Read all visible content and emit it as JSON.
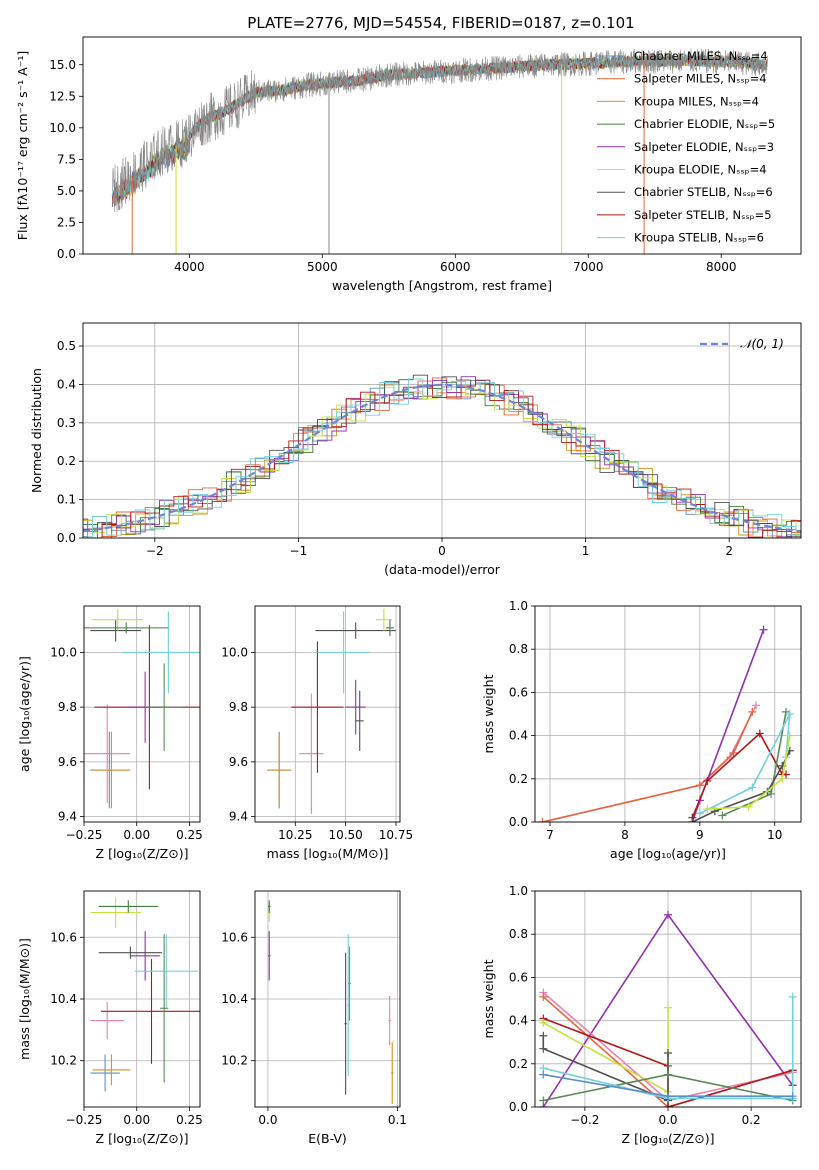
{
  "figure": {
    "title": "PLATE=2776, MJD=54554, FIBERID=0187, z=0.101"
  },
  "colors": {
    "Chabrier MILES": "#5b8fc9",
    "Salpeter MILES": "#e8643c",
    "Kroupa MILES": "#d89020",
    "Chabrier ELODIE": "#3f7f3f",
    "Salpeter ELODIE": "#9030b0",
    "Kroupa ELODIE": "#c8e040",
    "Chabrier STELIB": "#505050",
    "Salpeter STELIB": "#b01818",
    "Kroupa STELIB": "#70d0dc",
    "data": "#888888",
    "gauss": "#6f86d6",
    "pink": "#e880b0",
    "green2": "#5a8a5a"
  },
  "chart_data": [
    {
      "id": "spectrum",
      "type": "line",
      "xlabel": "wavelength [Angstrom, rest frame]",
      "ylabel": "Flux [fλ10⁻¹⁷ erg cm⁻² s⁻¹ A⁻¹]",
      "xlim": [
        3200,
        8600
      ],
      "ylim": [
        0,
        17.2
      ],
      "xticks": [
        "4000",
        "5000",
        "6000",
        "7000",
        "8000"
      ],
      "yticks": [
        "0.0",
        "2.5",
        "5.0",
        "7.5",
        "10.0",
        "12.5",
        "15.0"
      ],
      "legend_position": "upper right",
      "legend": [
        {
          "name": "Chabrier MILES, Nₛₛₚ=4",
          "color": "#5b8fc9"
        },
        {
          "name": "Salpeter MILES, Nₛₛₚ=4",
          "color": "#e8643c"
        },
        {
          "name": "Kroupa MILES, Nₛₛₚ=4",
          "color": "#d89020"
        },
        {
          "name": "Chabrier ELODIE, Nₛₛₚ=5",
          "color": "#3f7f3f"
        },
        {
          "name": "Salpeter ELODIE, Nₛₛₚ=3",
          "color": "#9030b0"
        },
        {
          "name": "Kroupa ELODIE, Nₛₛₚ=4",
          "color": "#c8e040"
        },
        {
          "name": "Chabrier STELIB, Nₛₛₚ=6",
          "color": "#505050"
        },
        {
          "name": "Salpeter STELIB, Nₛₛₚ=5",
          "color": "#b01818"
        },
        {
          "name": "Kroupa STELIB, Nₛₛₚ=6",
          "color": "#70d0dc"
        }
      ],
      "continuum": [
        [
          3420,
          5.0
        ],
        [
          3600,
          6.5
        ],
        [
          3800,
          8.2
        ],
        [
          3950,
          8.8
        ],
        [
          4100,
          10.5
        ],
        [
          4300,
          11.5
        ],
        [
          4500,
          12.8
        ],
        [
          4700,
          13.0
        ],
        [
          4900,
          13.4
        ],
        [
          5100,
          13.6
        ],
        [
          5300,
          13.8
        ],
        [
          5500,
          14.2
        ],
        [
          5800,
          14.4
        ],
        [
          6100,
          14.6
        ],
        [
          6400,
          14.8
        ],
        [
          6700,
          15.0
        ],
        [
          7000,
          15.1
        ],
        [
          7400,
          15.3
        ],
        [
          7800,
          15.3
        ],
        [
          8100,
          15.2
        ],
        [
          8350,
          15.0
        ]
      ],
      "vertical_drops": [
        3570,
        3900,
        5050,
        6800,
        7420
      ]
    },
    {
      "id": "residuals",
      "type": "step",
      "xlabel": "(data-model)/error",
      "ylabel": "Normed distribution",
      "xlim": [
        -2.5,
        2.5
      ],
      "ylim": [
        0,
        0.56
      ],
      "xticks": [
        "−2",
        "−1",
        "0",
        "1",
        "2"
      ],
      "yticks": [
        "0.0",
        "0.1",
        "0.2",
        "0.3",
        "0.4",
        "0.5"
      ],
      "legend": [
        {
          "name": "𝒩(0, 1)",
          "color": "#6f86d6",
          "style": "dashed"
        }
      ],
      "bin_width": 0.1,
      "x_start": -2.5
    },
    {
      "id": "age_vs_Z",
      "type": "errorbar",
      "xlabel": "Z [log₁₀(Z/Z⊙)]",
      "ylabel": "age  [log₁₀(age/yr)]",
      "xlim": [
        -0.25,
        0.3
      ],
      "ylim": [
        9.38,
        10.17
      ],
      "xticks": [
        "−0.25",
        "0.00",
        "0.25"
      ],
      "yticks": [
        "9.4",
        "9.6",
        "9.8",
        "10.0"
      ],
      "points": [
        {
          "x": -0.13,
          "y": 9.57,
          "xerr": 0.09,
          "yerr": 0.14,
          "color": "#5b8fc9"
        },
        {
          "x": -0.12,
          "y": 9.57,
          "xerr": 0.09,
          "yerr": 0.14,
          "color": "#d89020"
        },
        {
          "x": -0.14,
          "y": 9.63,
          "xerr": 0.11,
          "yerr": 0.18,
          "color": "#e880b0"
        },
        {
          "x": 0.06,
          "y": 9.8,
          "xerr": 0.26,
          "yerr": 0.3,
          "color": "#b01818"
        },
        {
          "x": 0.04,
          "y": 9.8,
          "xerr": 0.08,
          "yerr": 0.13,
          "color": "#9030b0"
        },
        {
          "x": 0.13,
          "y": 9.8,
          "xerr": 0.09,
          "yerr": 0.16,
          "color": "#5a8a5a"
        },
        {
          "x": 0.15,
          "y": 10.0,
          "xerr": 0.22,
          "yerr": 0.15,
          "color": "#70d0dc"
        },
        {
          "x": -0.1,
          "y": 10.08,
          "xerr": 0.12,
          "yerr": 0.04,
          "color": "#505050"
        },
        {
          "x": -0.09,
          "y": 10.12,
          "xerr": 0.12,
          "yerr": 0.04,
          "color": "#c8e040"
        },
        {
          "x": -0.05,
          "y": 10.09,
          "xerr": 0.2,
          "yerr": 0.02,
          "color": "#3f7f3f"
        }
      ]
    },
    {
      "id": "age_vs_mass",
      "type": "errorbar",
      "xlabel": "mass [log₁₀(M/M⊙)]",
      "ylabel": "",
      "xlim": [
        10.05,
        10.77
      ],
      "ylim": [
        9.38,
        10.17
      ],
      "xticks": [
        "10.25",
        "10.50",
        "10.75"
      ],
      "yticks": [
        "9.4",
        "9.6",
        "9.8",
        "10.0"
      ],
      "points": [
        {
          "x": 10.17,
          "y": 9.57,
          "xerr": 0.06,
          "yerr": 0.14,
          "color": "#5b8fc9"
        },
        {
          "x": 10.17,
          "y": 9.57,
          "xerr": 0.06,
          "yerr": 0.13,
          "color": "#d89020"
        },
        {
          "x": 10.33,
          "y": 9.63,
          "xerr": 0.06,
          "yerr": 0.22,
          "color": "#e880b0"
        },
        {
          "x": 10.36,
          "y": 9.8,
          "xerr": 0.13,
          "yerr": 0.24,
          "color": "#b01818"
        },
        {
          "x": 10.55,
          "y": 9.8,
          "xerr": 0.05,
          "yerr": 0.1,
          "color": "#9030b0"
        },
        {
          "x": 10.57,
          "y": 9.75,
          "xerr": 0.02,
          "yerr": 0.11,
          "color": "#505050"
        },
        {
          "x": 10.49,
          "y": 10.0,
          "xerr": 0.13,
          "yerr": 0.15,
          "color": "#70d0dc"
        },
        {
          "x": 10.55,
          "y": 10.08,
          "xerr": 0.2,
          "yerr": 0.03,
          "color": "#505050"
        },
        {
          "x": 10.69,
          "y": 10.12,
          "xerr": 0.04,
          "yerr": 0.04,
          "color": "#c8e040"
        },
        {
          "x": 10.72,
          "y": 10.09,
          "xerr": 0.02,
          "yerr": 0.03,
          "color": "#3f7f3f"
        }
      ]
    },
    {
      "id": "weight_vs_age",
      "type": "line",
      "xlabel": "age  [log₁₀(age/yr)]",
      "ylabel": "mass weight",
      "xlim": [
        6.8,
        10.35
      ],
      "ylim": [
        0,
        1.0
      ],
      "xticks": [
        "7",
        "8",
        "9",
        "10"
      ],
      "yticks": [
        "0.0",
        "0.2",
        "0.4",
        "0.6",
        "0.8",
        "1.0"
      ],
      "grid": true,
      "series": [
        {
          "color": "#e880b0",
          "x": [
            6.9,
            9.0,
            9.4,
            9.75
          ],
          "y": [
            0.0,
            0.17,
            0.3,
            0.54
          ]
        },
        {
          "color": "#e8643c",
          "x": [
            6.9,
            9.0,
            9.45,
            9.7
          ],
          "y": [
            0.0,
            0.17,
            0.32,
            0.51
          ]
        },
        {
          "color": "#9030b0",
          "x": [
            8.9,
            9.0,
            9.85
          ],
          "y": [
            0.0,
            0.1,
            0.89
          ]
        },
        {
          "color": "#b01818",
          "x": [
            8.9,
            9.1,
            9.8,
            10.1,
            10.15
          ],
          "y": [
            0.02,
            0.19,
            0.41,
            0.22,
            0.22
          ]
        },
        {
          "color": "#5a8a5a",
          "x": [
            9.3,
            9.95,
            10.15
          ],
          "y": [
            0.03,
            0.13,
            0.51
          ]
        },
        {
          "color": "#505050",
          "x": [
            8.9,
            9.2,
            9.9,
            10.1,
            10.2
          ],
          "y": [
            0.0,
            0.05,
            0.14,
            0.26,
            0.33
          ]
        },
        {
          "color": "#70d0dc",
          "x": [
            9.0,
            9.7,
            10.2,
            10.15
          ],
          "y": [
            0.04,
            0.16,
            0.5,
            0.3
          ]
        },
        {
          "color": "#c8e040",
          "x": [
            9.1,
            9.65,
            10.1,
            10.2
          ],
          "y": [
            0.06,
            0.07,
            0.2,
            0.4
          ]
        }
      ]
    },
    {
      "id": "mass_vs_Z",
      "type": "errorbar",
      "xlabel": "Z [log₁₀(Z/Z⊙)]",
      "ylabel": "mass [log₁₀(M/M⊙)]",
      "xlim": [
        -0.25,
        0.3
      ],
      "ylim": [
        10.05,
        10.75
      ],
      "xticks": [
        "−0.25",
        "0.00",
        "0.25"
      ],
      "yticks": [
        "10.2",
        "10.4",
        "10.6"
      ],
      "points": [
        {
          "x": -0.15,
          "y": 10.16,
          "xerr": 0.07,
          "yerr": 0.06,
          "color": "#5b8fc9"
        },
        {
          "x": -0.12,
          "y": 10.17,
          "xerr": 0.09,
          "yerr": 0.05,
          "color": "#d89020"
        },
        {
          "x": -0.14,
          "y": 10.33,
          "xerr": 0.08,
          "yerr": 0.06,
          "color": "#e880b0"
        },
        {
          "x": 0.07,
          "y": 10.36,
          "xerr": 0.24,
          "yerr": 0.17,
          "color": "#b01818"
        },
        {
          "x": 0.04,
          "y": 10.54,
          "xerr": 0.07,
          "yerr": 0.08,
          "color": "#9030b0"
        },
        {
          "x": 0.13,
          "y": 10.37,
          "xerr": 0.02,
          "yerr": 0.24,
          "color": "#5a8a5a"
        },
        {
          "x": 0.14,
          "y": 10.49,
          "xerr": 0.15,
          "yerr": 0.12,
          "color": "#70d0dc"
        },
        {
          "x": -0.03,
          "y": 10.55,
          "xerr": 0.15,
          "yerr": 0.02,
          "color": "#505050"
        },
        {
          "x": -0.1,
          "y": 10.68,
          "xerr": 0.12,
          "yerr": 0.05,
          "color": "#c8e040"
        },
        {
          "x": -0.04,
          "y": 10.7,
          "xerr": 0.14,
          "yerr": 0.02,
          "color": "#3f7f3f"
        }
      ]
    },
    {
      "id": "mass_vs_EBV",
      "type": "errorbar",
      "xlabel": "E(B-V)",
      "ylabel": "",
      "xlim": [
        -0.01,
        0.102
      ],
      "ylim": [
        10.05,
        10.75
      ],
      "xticks": [
        "0.0",
        "0.1"
      ],
      "yticks": [
        "10.2",
        "10.4",
        "10.6"
      ],
      "points": [
        {
          "x": 0.001,
          "y": 10.68,
          "xerr": 0.001,
          "yerr": 0.03,
          "color": "#c8e040"
        },
        {
          "x": 0.001,
          "y": 10.54,
          "xerr": 0.001,
          "yerr": 0.08,
          "color": "#9030b0"
        },
        {
          "x": 0.001,
          "y": 10.7,
          "xerr": 0.001,
          "yerr": 0.02,
          "color": "#3f7f3f"
        },
        {
          "x": 0.06,
          "y": 10.32,
          "xerr": 0.001,
          "yerr": 0.23,
          "color": "#505050"
        },
        {
          "x": 0.062,
          "y": 10.38,
          "xerr": 0.001,
          "yerr": 0.23,
          "color": "#70d0dc"
        },
        {
          "x": 0.063,
          "y": 10.45,
          "xerr": 0.001,
          "yerr": 0.12,
          "color": "#5b8fc9"
        },
        {
          "x": 0.094,
          "y": 10.33,
          "xerr": 0.001,
          "yerr": 0.08,
          "color": "#e880b0"
        },
        {
          "x": 0.096,
          "y": 10.16,
          "xerr": 0.001,
          "yerr": 0.1,
          "color": "#d89020"
        }
      ]
    },
    {
      "id": "weight_vs_Z",
      "type": "line",
      "xlabel": "Z [log₁₀(Z/Z⊙)]",
      "ylabel": "mass weight",
      "xlim": [
        -0.32,
        0.32
      ],
      "ylim": [
        0,
        1.0
      ],
      "xticks": [
        "−0.2",
        "0.0",
        "0.2"
      ],
      "yticks": [
        "0.0",
        "0.2",
        "0.4",
        "0.6",
        "0.8",
        "1.0"
      ],
      "grid": true,
      "series": [
        {
          "color": "#9030b0",
          "x": [
            -0.3,
            0.0,
            0.3,
            0.3
          ],
          "y": [
            0.0,
            0.89,
            0.1,
            0.1
          ]
        },
        {
          "color": "#e880b0",
          "x": [
            -0.3,
            0.0,
            0.3
          ],
          "y": [
            0.53,
            0.03,
            0.16
          ]
        },
        {
          "color": "#e8643c",
          "x": [
            -0.3,
            0.0,
            0.3
          ],
          "y": [
            0.51,
            0.0,
            0.17
          ]
        },
        {
          "color": "#b01818",
          "x": [
            -0.3,
            0.0,
            0.0,
            0.3
          ],
          "y": [
            0.41,
            0.19,
            0.0,
            0.17
          ]
        },
        {
          "color": "#c8e040",
          "x": [
            -0.3,
            0.0,
            0.0
          ],
          "y": [
            0.39,
            0.07,
            0.46
          ]
        },
        {
          "color": "#505050",
          "x": [
            -0.3,
            -0.3,
            0.0,
            0.0
          ],
          "y": [
            0.33,
            0.27,
            0.03,
            0.25
          ]
        },
        {
          "color": "#5a8a5a",
          "x": [
            -0.3,
            0.0,
            0.3
          ],
          "y": [
            0.03,
            0.15,
            0.03
          ]
        },
        {
          "color": "#70d0dc",
          "x": [
            -0.3,
            0.0,
            0.3,
            0.3
          ],
          "y": [
            0.18,
            0.04,
            0.04,
            0.51
          ]
        },
        {
          "color": "#5b8fc9",
          "x": [
            -0.3,
            0.0,
            0.3
          ],
          "y": [
            0.15,
            0.05,
            0.05
          ]
        }
      ]
    }
  ]
}
